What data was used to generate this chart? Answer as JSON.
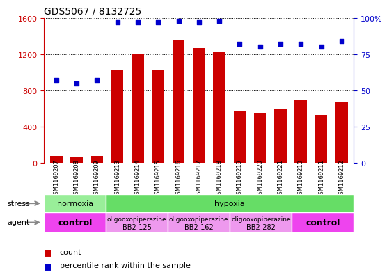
{
  "title": "GDS5067 / 8132725",
  "samples": [
    "GSM1169207",
    "GSM1169208",
    "GSM1169209",
    "GSM1169213",
    "GSM1169214",
    "GSM1169215",
    "GSM1169216",
    "GSM1169217",
    "GSM1169218",
    "GSM1169219",
    "GSM1169220",
    "GSM1169221",
    "GSM1169210",
    "GSM1169211",
    "GSM1169212"
  ],
  "counts": [
    80,
    60,
    80,
    1020,
    1200,
    1030,
    1350,
    1270,
    1230,
    580,
    550,
    590,
    700,
    530,
    680
  ],
  "percentiles": [
    57,
    55,
    57,
    97,
    97,
    97,
    98,
    97,
    98,
    82,
    80,
    82,
    82,
    80,
    84
  ],
  "ylim_left": [
    0,
    1600
  ],
  "ylim_right": [
    0,
    100
  ],
  "yticks_left": [
    0,
    400,
    800,
    1200,
    1600
  ],
  "yticks_right": [
    0,
    25,
    50,
    75,
    100
  ],
  "bar_color": "#cc0000",
  "dot_color": "#0000cc",
  "stress_groups": [
    {
      "label": "normoxia",
      "start": 0,
      "end": 3,
      "color": "#99ee99"
    },
    {
      "label": "hypoxia",
      "start": 3,
      "end": 15,
      "color": "#66dd66"
    }
  ],
  "agent_groups": [
    {
      "label": "control",
      "start": 0,
      "end": 3,
      "color": "#ee44ee"
    },
    {
      "label": "oligooxopiperazine\nBB2-125",
      "start": 3,
      "end": 6,
      "color": "#ee99ee"
    },
    {
      "label": "oligooxopiperazine\nBB2-162",
      "start": 6,
      "end": 9,
      "color": "#ee99ee"
    },
    {
      "label": "oligooxopiperazine\nBB2-282",
      "start": 9,
      "end": 12,
      "color": "#ee99ee"
    },
    {
      "label": "control",
      "start": 12,
      "end": 15,
      "color": "#ee44ee"
    }
  ],
  "bg_color": "#ffffff",
  "tick_bg_color": "#dddddd",
  "legend_count_label": "count",
  "legend_pct_label": "percentile rank within the sample"
}
